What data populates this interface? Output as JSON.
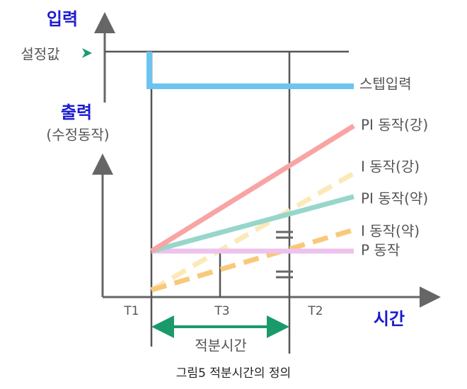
{
  "labels": {
    "input": "입력",
    "setpoint": "설정값",
    "output": "출력",
    "output_sub": "(수정동작)",
    "time": "시간"
  },
  "curves": [
    "스텝입력",
    "PI 동작(강)",
    "I 동작(강)",
    "PI 동작(약)",
    "I 동작(약)",
    "P 동작"
  ],
  "time_marks": [
    "T1",
    "T3",
    "T2"
  ],
  "span_label": "적분시간",
  "caption": "그림5  적분시간의 정의"
}
